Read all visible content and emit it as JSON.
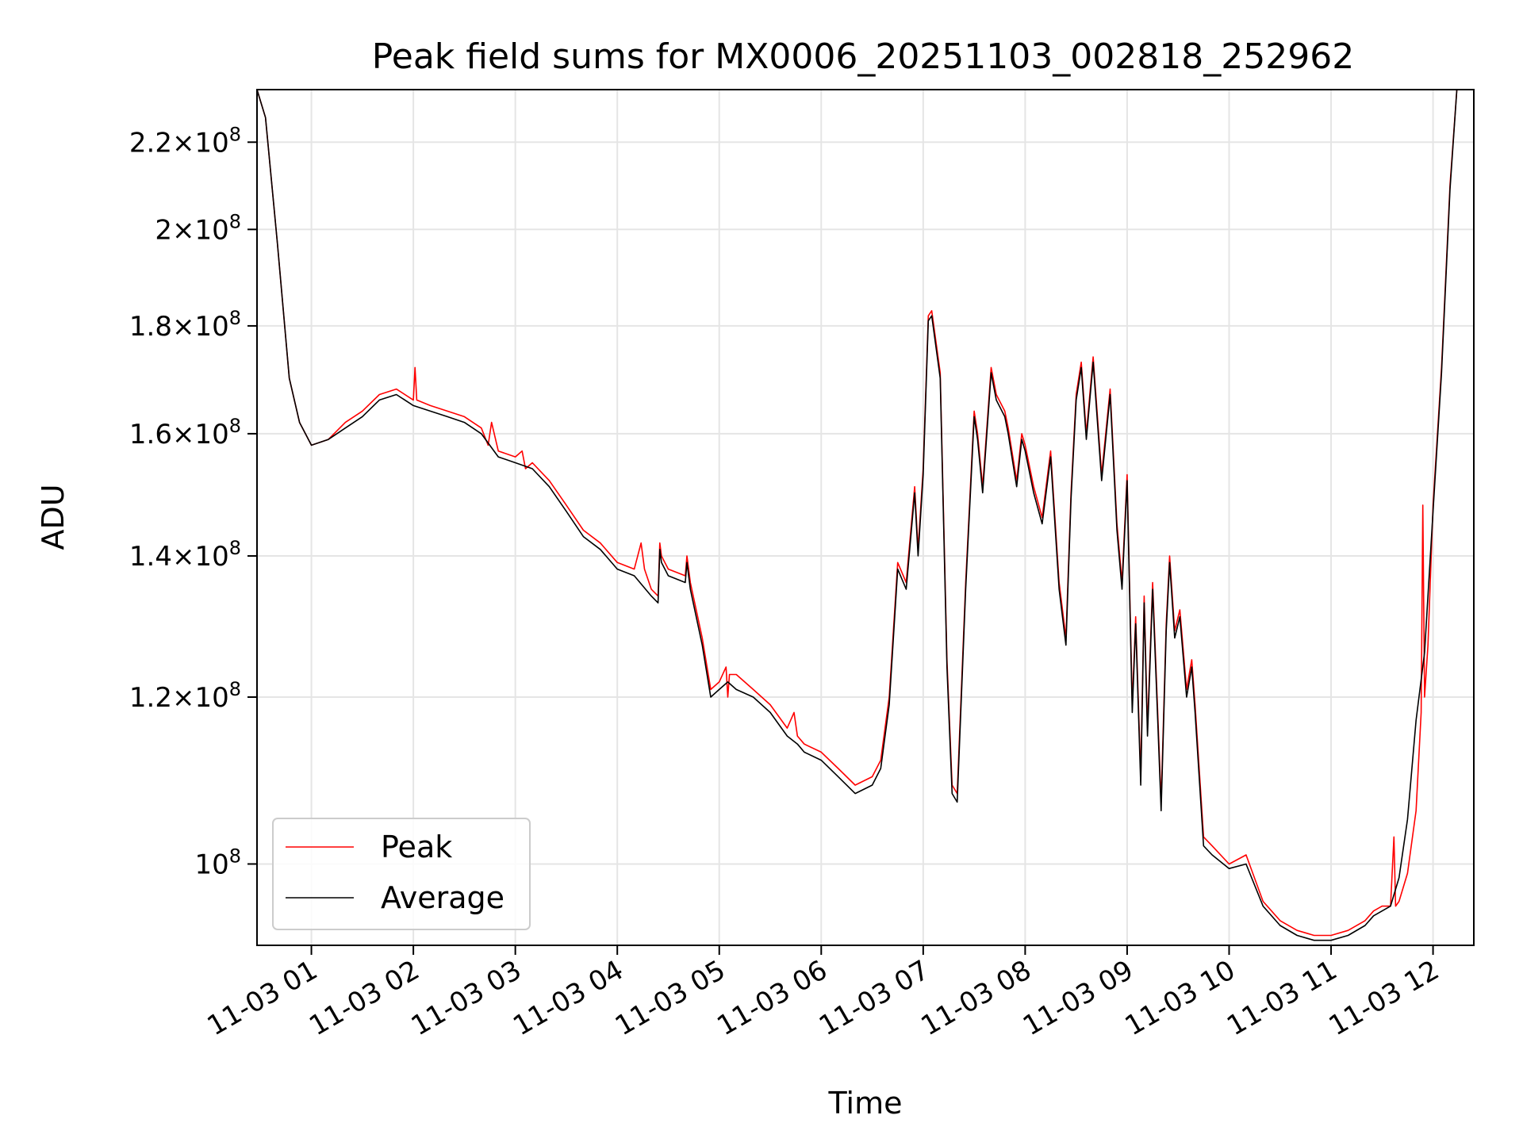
{
  "chart_data": {
    "type": "line",
    "title": "Peak field sums for MX0006_20251103_002818_252962",
    "xlabel": "Time",
    "ylabel": "ADU",
    "y_scale": "log",
    "ylim": [
      91500000,
      233000000
    ],
    "xlim": [
      "2025-11-03 00:28",
      "2025-11-03 12:24"
    ],
    "grid": true,
    "legend_position": "lower-left",
    "x_ticks": [
      "11-03 01",
      "11-03 02",
      "11-03 03",
      "11-03 04",
      "11-03 05",
      "11-03 06",
      "11-03 07",
      "11-03 08",
      "11-03 09",
      "11-03 10",
      "11-03 11",
      "11-03 12"
    ],
    "y_ticks": [
      {
        "value": 100000000,
        "mantissa": "",
        "exponent": "8"
      },
      {
        "value": 120000000,
        "mantissa": "1.2",
        "exponent": "8"
      },
      {
        "value": 140000000,
        "mantissa": "1.4",
        "exponent": "8"
      },
      {
        "value": 160000000,
        "mantissa": "1.6",
        "exponent": "8"
      },
      {
        "value": 180000000,
        "mantissa": "1.8",
        "exponent": "8"
      },
      {
        "value": 200000000,
        "mantissa": "2",
        "exponent": "8"
      },
      {
        "value": 220000000,
        "mantissa": "2.2",
        "exponent": "8"
      }
    ],
    "series": [
      {
        "name": "Peak",
        "color": "#ff0000",
        "x": [
          "00:28",
          "00:33",
          "00:40",
          "00:47",
          "00:53",
          "01:00",
          "01:10",
          "01:20",
          "01:30",
          "01:40",
          "01:50",
          "02:00",
          "02:01",
          "02:02",
          "02:10",
          "02:20",
          "02:30",
          "02:40",
          "02:44",
          "02:46",
          "02:50",
          "03:00",
          "03:04",
          "03:06",
          "03:10",
          "03:20",
          "03:30",
          "03:40",
          "03:50",
          "04:00",
          "04:10",
          "04:14",
          "04:16",
          "04:20",
          "04:24",
          "04:25",
          "04:26",
          "04:30",
          "04:40",
          "04:41",
          "04:43",
          "04:50",
          "04:55",
          "05:00",
          "05:04",
          "05:05",
          "05:06",
          "05:10",
          "05:20",
          "05:30",
          "05:40",
          "05:44",
          "05:46",
          "05:50",
          "06:00",
          "06:10",
          "06:20",
          "06:30",
          "06:35",
          "06:40",
          "06:45",
          "06:50",
          "06:55",
          "06:57",
          "07:00",
          "07:03",
          "07:05",
          "07:10",
          "07:14",
          "07:17",
          "07:20",
          "07:25",
          "07:30",
          "07:32",
          "07:35",
          "07:40",
          "07:43",
          "07:48",
          "07:50",
          "07:55",
          "07:58",
          "08:00",
          "08:05",
          "08:10",
          "08:15",
          "08:20",
          "08:24",
          "08:27",
          "08:30",
          "08:33",
          "08:36",
          "08:40",
          "08:45",
          "08:50",
          "08:54",
          "08:57",
          "09:00",
          "09:03",
          "09:05",
          "09:08",
          "09:10",
          "09:12",
          "09:15",
          "09:18",
          "09:20",
          "09:23",
          "09:25",
          "09:28",
          "09:31",
          "09:35",
          "09:38",
          "09:40",
          "09:45",
          "09:50",
          "10:00",
          "10:10",
          "10:20",
          "10:30",
          "10:40",
          "10:50",
          "11:00",
          "11:10",
          "11:20",
          "11:25",
          "11:30",
          "11:35",
          "11:37",
          "11:38",
          "11:40",
          "11:45",
          "11:50",
          "11:53",
          "11:54",
          "11:55",
          "11:57",
          "12:00",
          "12:05",
          "12:10",
          "12:14"
        ],
        "y": [
          233000000,
          226000000,
          197000000,
          170000000,
          162000000,
          158000000,
          159000000,
          162000000,
          164000000,
          167000000,
          168000000,
          166000000,
          172000000,
          166000000,
          165000000,
          164000000,
          163000000,
          161000000,
          158000000,
          162000000,
          157000000,
          156000000,
          157000000,
          154000000,
          155000000,
          152000000,
          148000000,
          144000000,
          142000000,
          139000000,
          138000000,
          142000000,
          138000000,
          135000000,
          134000000,
          142000000,
          140000000,
          138000000,
          137000000,
          140000000,
          136000000,
          128000000,
          121000000,
          122000000,
          124000000,
          120000000,
          123000000,
          123000000,
          121000000,
          119000000,
          116000000,
          118000000,
          115000000,
          114000000,
          113000000,
          111000000,
          109000000,
          110000000,
          112000000,
          120000000,
          139000000,
          136000000,
          151000000,
          141000000,
          154000000,
          182000000,
          183000000,
          171000000,
          125000000,
          109000000,
          108000000,
          136000000,
          164000000,
          160000000,
          151000000,
          172000000,
          167000000,
          164000000,
          161000000,
          152000000,
          160000000,
          158000000,
          151000000,
          146000000,
          157000000,
          136000000,
          128000000,
          150000000,
          167000000,
          173000000,
          160000000,
          174000000,
          153000000,
          168000000,
          145000000,
          136000000,
          153000000,
          119000000,
          131000000,
          110000000,
          134000000,
          116000000,
          136000000,
          118000000,
          107000000,
          130000000,
          140000000,
          129000000,
          132000000,
          121000000,
          125000000,
          119000000,
          103000000,
          102000000,
          100000000,
          101000000,
          96000000,
          94000000,
          93000000,
          92500000,
          92500000,
          93000000,
          94000000,
          95000000,
          95500000,
          95500000,
          103000000,
          95500000,
          96000000,
          99000000,
          106000000,
          118000000,
          148000000,
          120000000,
          127000000,
          148000000,
          172000000,
          210000000,
          233000000
        ]
      },
      {
        "name": "Average",
        "color": "#000000",
        "x": [
          "00:28",
          "00:33",
          "00:40",
          "00:47",
          "00:53",
          "01:00",
          "01:10",
          "01:20",
          "01:30",
          "01:40",
          "01:50",
          "02:00",
          "02:10",
          "02:20",
          "02:30",
          "02:40",
          "02:50",
          "03:00",
          "03:10",
          "03:20",
          "03:30",
          "03:40",
          "03:50",
          "04:00",
          "04:10",
          "04:20",
          "04:24",
          "04:25",
          "04:26",
          "04:30",
          "04:40",
          "04:41",
          "04:43",
          "04:50",
          "04:55",
          "05:00",
          "05:05",
          "05:10",
          "05:20",
          "05:30",
          "05:40",
          "05:46",
          "05:50",
          "06:00",
          "06:10",
          "06:20",
          "06:30",
          "06:35",
          "06:40",
          "06:45",
          "06:50",
          "06:55",
          "06:57",
          "07:00",
          "07:03",
          "07:05",
          "07:10",
          "07:14",
          "07:17",
          "07:20",
          "07:25",
          "07:30",
          "07:32",
          "07:35",
          "07:40",
          "07:43",
          "07:48",
          "07:50",
          "07:55",
          "07:58",
          "08:00",
          "08:05",
          "08:10",
          "08:15",
          "08:20",
          "08:24",
          "08:27",
          "08:30",
          "08:33",
          "08:36",
          "08:40",
          "08:45",
          "08:50",
          "08:54",
          "08:57",
          "09:00",
          "09:03",
          "09:05",
          "09:08",
          "09:10",
          "09:12",
          "09:15",
          "09:18",
          "09:20",
          "09:23",
          "09:25",
          "09:28",
          "09:31",
          "09:35",
          "09:38",
          "09:40",
          "09:45",
          "09:50",
          "10:00",
          "10:10",
          "10:20",
          "10:30",
          "10:40",
          "10:50",
          "11:00",
          "11:10",
          "11:20",
          "11:25",
          "11:30",
          "11:35",
          "11:40",
          "11:45",
          "11:50",
          "11:55",
          "12:00",
          "12:05",
          "12:10",
          "12:14"
        ],
        "y": [
          233000000,
          226000000,
          197000000,
          170000000,
          162000000,
          158000000,
          159000000,
          161000000,
          163000000,
          166000000,
          167000000,
          165000000,
          164000000,
          163000000,
          162000000,
          160000000,
          156000000,
          155000000,
          154000000,
          151000000,
          147000000,
          143000000,
          141000000,
          138000000,
          137000000,
          134000000,
          133000000,
          141000000,
          139000000,
          137000000,
          136000000,
          139000000,
          135000000,
          127000000,
          120000000,
          121000000,
          122000000,
          121000000,
          120000000,
          118000000,
          115000000,
          114000000,
          113000000,
          112000000,
          110000000,
          108000000,
          109000000,
          111000000,
          119000000,
          138000000,
          135000000,
          150000000,
          140000000,
          153000000,
          181000000,
          182000000,
          170000000,
          124000000,
          108000000,
          107000000,
          135000000,
          163000000,
          159000000,
          150000000,
          171000000,
          166000000,
          163000000,
          160000000,
          151000000,
          159000000,
          157000000,
          150000000,
          145000000,
          156000000,
          135000000,
          127000000,
          149000000,
          166000000,
          172000000,
          159000000,
          173000000,
          152000000,
          167000000,
          144000000,
          135000000,
          152000000,
          118000000,
          130000000,
          109000000,
          133000000,
          115000000,
          135000000,
          117000000,
          106000000,
          129000000,
          139000000,
          128000000,
          131000000,
          120000000,
          124000000,
          118000000,
          102000000,
          101000000,
          99500000,
          100000000,
          95500000,
          93500000,
          92500000,
          92000000,
          92000000,
          92500000,
          93500000,
          94500000,
          95000000,
          95500000,
          98500000,
          105000000,
          117000000,
          126000000,
          147000000,
          171000000,
          209000000,
          233000000
        ]
      }
    ]
  }
}
